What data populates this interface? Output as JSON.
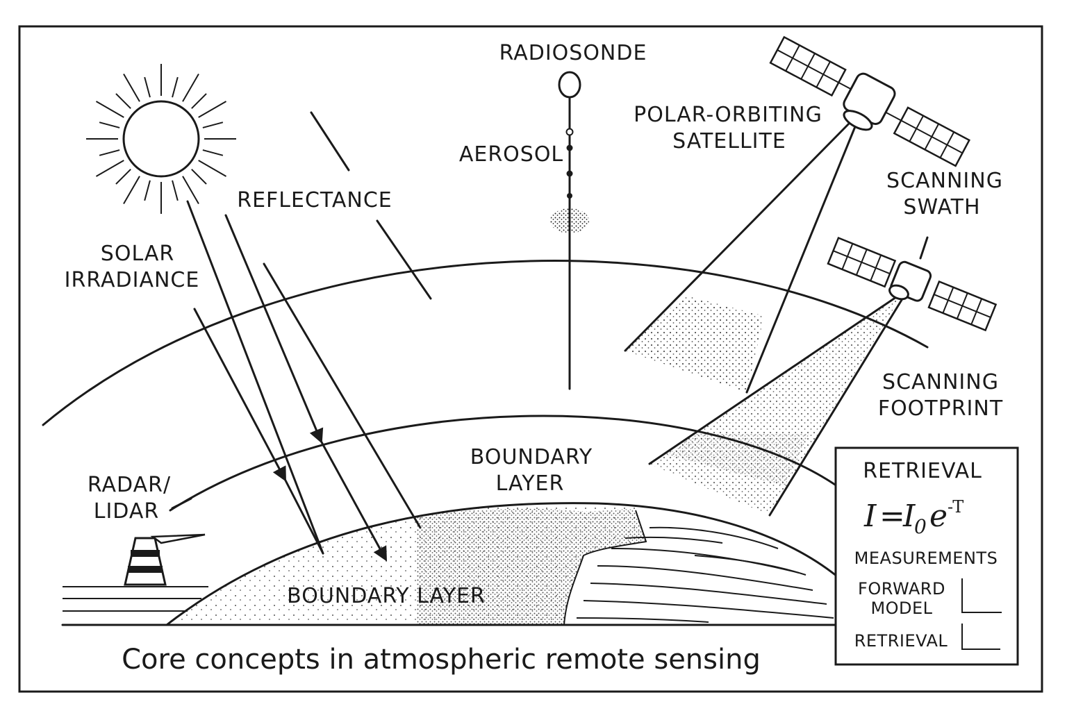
{
  "labels": {
    "radiosonde": "RADIOSONDE",
    "aerosol": "AEROSOL",
    "polar_line1": "POLAR-ORBITING",
    "polar_line2": "SATELLITE",
    "swath_line1": "SCANNING",
    "swath_line2": "SWATH",
    "footprint_line1": "SCANNING",
    "footprint_line2": "FOOTPRINT",
    "reflectance": "REFLECTANCE",
    "solar_line1": "SOLAR",
    "solar_line2": "IRRADIANCE",
    "radar_line1": "RADAR/",
    "radar_line2": "LIDAR",
    "boundary_upper_line1": "BOUNDARY",
    "boundary_upper_line2": "LAYER",
    "boundary_lower": "BOUNDARY LAYER"
  },
  "retrieval_box": {
    "title": "RETRIEVAL",
    "equation": {
      "lhs": "I",
      "equals": "=",
      "base": "I",
      "subscript": "0",
      "exp_base": "e",
      "exponent": "-T"
    },
    "measurements": "MEASUREMENTS",
    "forward_line1": "FORWARD",
    "forward_line2": "MODEL",
    "retrieval": "RETRIEVAL"
  },
  "caption": "Core concepts in atmospheric remote sensing",
  "icons": [
    "sun-icon",
    "radiosonde-balloon-icon",
    "satellite-icon",
    "radar-tower-icon"
  ]
}
